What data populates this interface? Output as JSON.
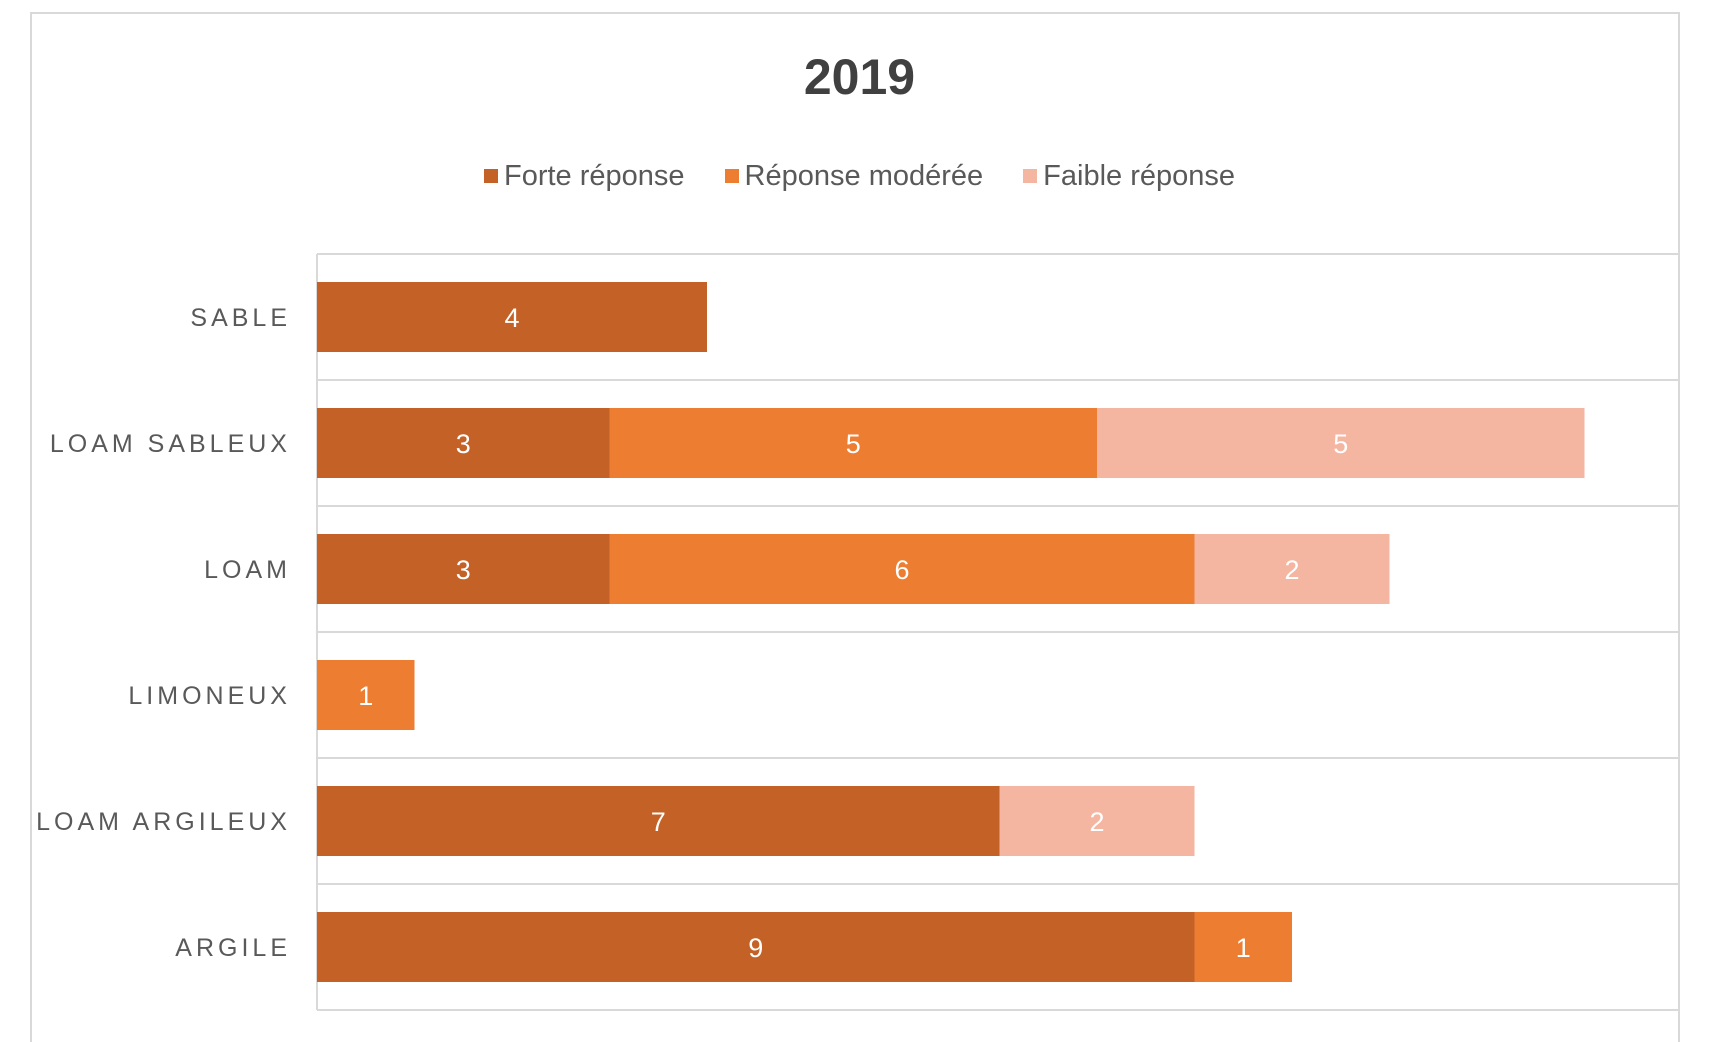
{
  "chart_data": {
    "type": "bar",
    "orientation": "horizontal",
    "stacked": true,
    "title": "2019",
    "categories": [
      "SABLE",
      "LOAM SABLEUX",
      "LOAM",
      "LIMONEUX",
      "LOAM ARGILEUX",
      "ARGILE"
    ],
    "series": [
      {
        "name": "Forte réponse",
        "color": "#c46127",
        "values": [
          4,
          3,
          3,
          0,
          7,
          9
        ]
      },
      {
        "name": "Réponse modérée",
        "color": "#ed7d31",
        "values": [
          0,
          5,
          6,
          1,
          0,
          1
        ]
      },
      {
        "name": "Faible réponse",
        "color": "#f4b6a1",
        "values": [
          0,
          5,
          2,
          0,
          2,
          0
        ]
      }
    ],
    "xlim": [
      0,
      14
    ],
    "grid": true,
    "legend_position": "top"
  }
}
